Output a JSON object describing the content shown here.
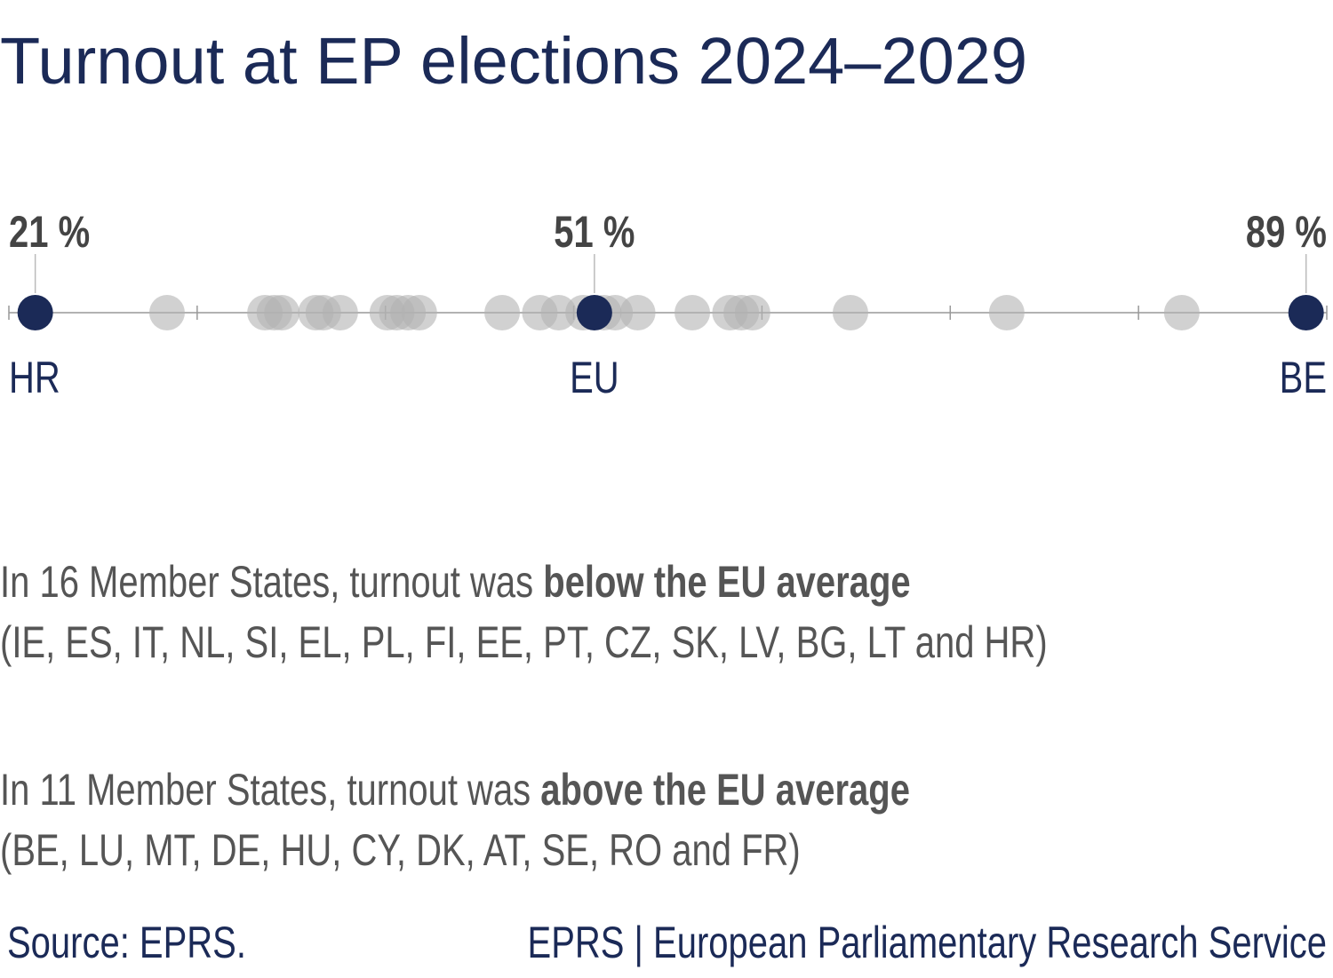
{
  "chart_data": {
    "type": "strip",
    "title": "Turnout at EP elections 2024–2029",
    "xlim": [
      20,
      90
    ],
    "xticks": [
      20,
      30,
      40,
      50,
      60,
      70,
      80,
      90
    ],
    "series": [
      {
        "color": "#b3b3b3",
        "values": [
          28.4,
          33.6,
          34.1,
          34.5,
          36.3,
          36.7,
          37.6,
          40.1,
          40.6,
          41.2,
          41.8,
          46.2,
          48.2,
          49.2,
          50.5,
          51.6,
          52.2,
          53.4,
          56.3,
          58.3,
          58.9,
          59.5,
          64.7,
          73.0,
          82.3
        ]
      }
    ],
    "highlights": {
      "color": "#1b2a57",
      "categories": [
        "HR",
        "EU",
        "BE"
      ],
      "values": [
        21.4,
        51.1,
        88.9
      ],
      "value_labels": [
        "21 %",
        "51 %",
        "89 %"
      ]
    },
    "notes": [
      {
        "text": "In 16 Member States, turnout was ",
        "emphasis": "below the EU average",
        "list": "(IE, ES, IT, NL, SI, EL, PL, FI, EE, PT, CZ, SK, LV, BG, LT and HR)"
      },
      {
        "text": "In 11 Member States, turnout was ",
        "emphasis": "above the EU average",
        "list": "(BE, LU, MT, DE, HU, CY, DK, AT, SE, RO and FR)"
      }
    ],
    "source": "Source: EPRS.",
    "credit": "EPRS | European Parliamentary Research Service"
  }
}
